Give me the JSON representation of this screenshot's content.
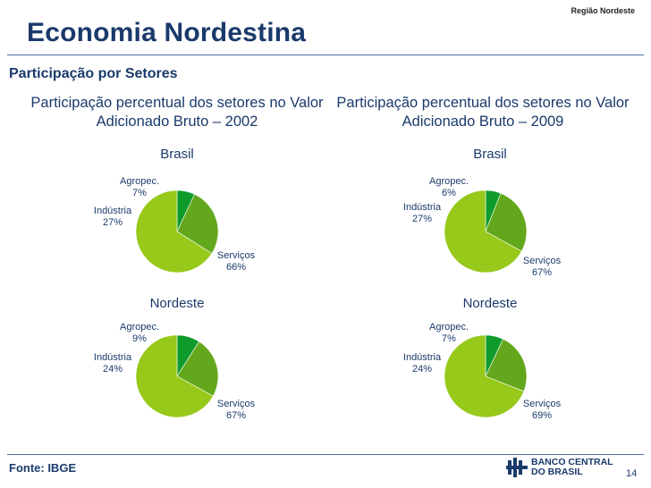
{
  "header": {
    "region": "Região Nordeste",
    "title": "Economia Nordestina",
    "subtitle": "Participação por Setores"
  },
  "footer": {
    "source": "Fonte: IBGE",
    "logo_line1": "BANCO CENTRAL",
    "logo_line2": "DO BRASIL",
    "page_number": "14"
  },
  "colors": {
    "agropec": "#0e9b2c",
    "industria": "#63a81c",
    "servicos": "#97c91a"
  },
  "chart_data": [
    {
      "type": "pie",
      "title": "Participação percentual dos setores no Valor Adicionado Bruto – 2002",
      "subtitle": "Brasil",
      "slices": [
        {
          "label": "Agropec.",
          "value": 7,
          "text": "7%"
        },
        {
          "label": "Indústria",
          "value": 27,
          "text": "27%"
        },
        {
          "label": "Serviços",
          "value": 66,
          "text": "66%"
        }
      ]
    },
    {
      "type": "pie",
      "title": "Participação percentual dos setores no Valor Adicionado Bruto – 2009",
      "subtitle": "Brasil",
      "slices": [
        {
          "label": "Agropec.",
          "value": 6,
          "text": "6%"
        },
        {
          "label": "Indústria",
          "value": 27,
          "text": "27%"
        },
        {
          "label": "Serviços",
          "value": 67,
          "text": "67%"
        }
      ]
    },
    {
      "type": "pie",
      "title": "Participação percentual dos setores no Valor Adicionado Bruto – 2002",
      "subtitle": "Nordeste",
      "slices": [
        {
          "label": "Agropec.",
          "value": 9,
          "text": "9%"
        },
        {
          "label": "Indústria",
          "value": 24,
          "text": "24%"
        },
        {
          "label": "Serviços",
          "value": 67,
          "text": "67%"
        }
      ]
    },
    {
      "type": "pie",
      "title": "Participação percentual dos setores no Valor Adicionado Bruto – 2009",
      "subtitle": "Nordeste",
      "slices": [
        {
          "label": "Agropec.",
          "value": 7,
          "text": "7%"
        },
        {
          "label": "Indústria",
          "value": 24,
          "text": "24%"
        },
        {
          "label": "Serviços",
          "value": 69,
          "text": "69%"
        }
      ]
    }
  ]
}
